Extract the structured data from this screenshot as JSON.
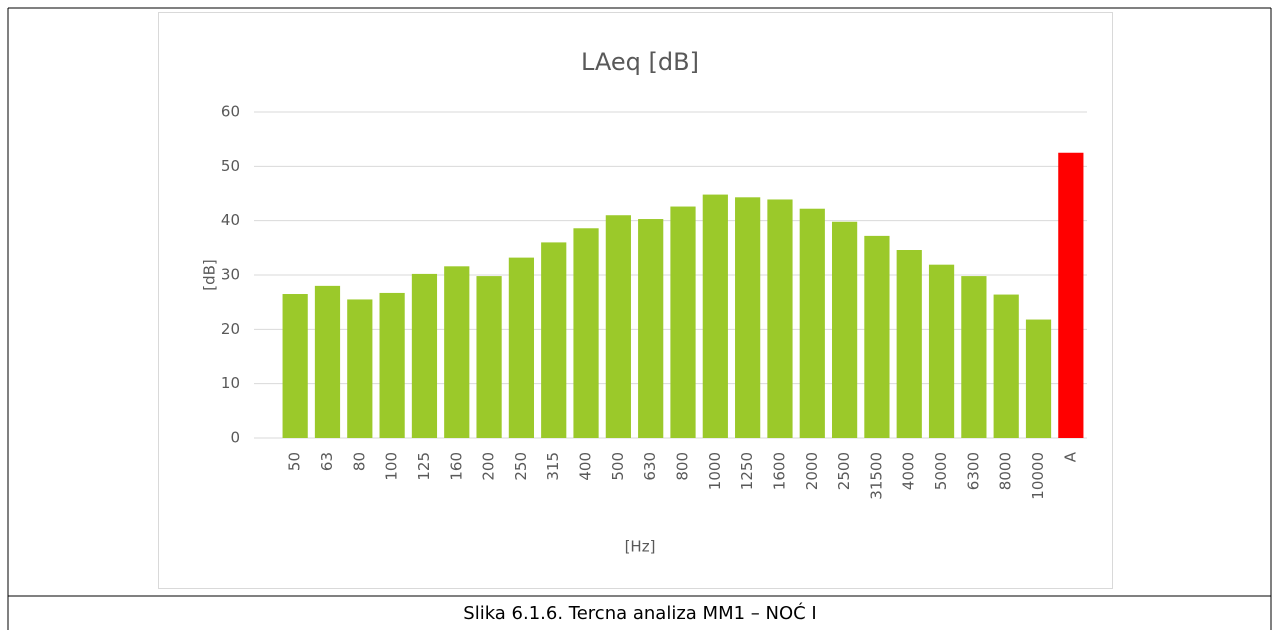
{
  "chart_data": {
    "type": "bar",
    "title": "LAeq [dB]",
    "x_label": "[Hz]",
    "y_label": "[dB]",
    "categories": [
      "50",
      "63",
      "80",
      "100",
      "125",
      "160",
      "200",
      "250",
      "315",
      "400",
      "500",
      "630",
      "800",
      "1000",
      "1250",
      "1600",
      "2000",
      "2500",
      "31500",
      "4000",
      "5000",
      "6300",
      "8000",
      "10000",
      "A"
    ],
    "values": [
      26.5,
      28,
      25.5,
      26.7,
      30.2,
      31.6,
      29.8,
      33.2,
      36,
      38.6,
      41,
      40.3,
      42.6,
      44.8,
      44.3,
      43.9,
      42.2,
      39.8,
      37.2,
      34.6,
      31.9,
      29.8,
      26.4,
      21.8,
      52.5
    ],
    "colors": [
      "#9bc92a",
      "#9bc92a",
      "#9bc92a",
      "#9bc92a",
      "#9bc92a",
      "#9bc92a",
      "#9bc92a",
      "#9bc92a",
      "#9bc92a",
      "#9bc92a",
      "#9bc92a",
      "#9bc92a",
      "#9bc92a",
      "#9bc92a",
      "#9bc92a",
      "#9bc92a",
      "#9bc92a",
      "#9bc92a",
      "#9bc92a",
      "#9bc92a",
      "#9bc92a",
      "#9bc92a",
      "#9bc92a",
      "#9bc92a",
      "#ff0000"
    ],
    "ylim": [
      0,
      60
    ],
    "yticks": [
      0,
      10,
      20,
      30,
      40,
      50,
      60
    ],
    "grid": true
  },
  "caption": "Slika 6.1.6. Tercna analiza MM1 – NOĆ I"
}
